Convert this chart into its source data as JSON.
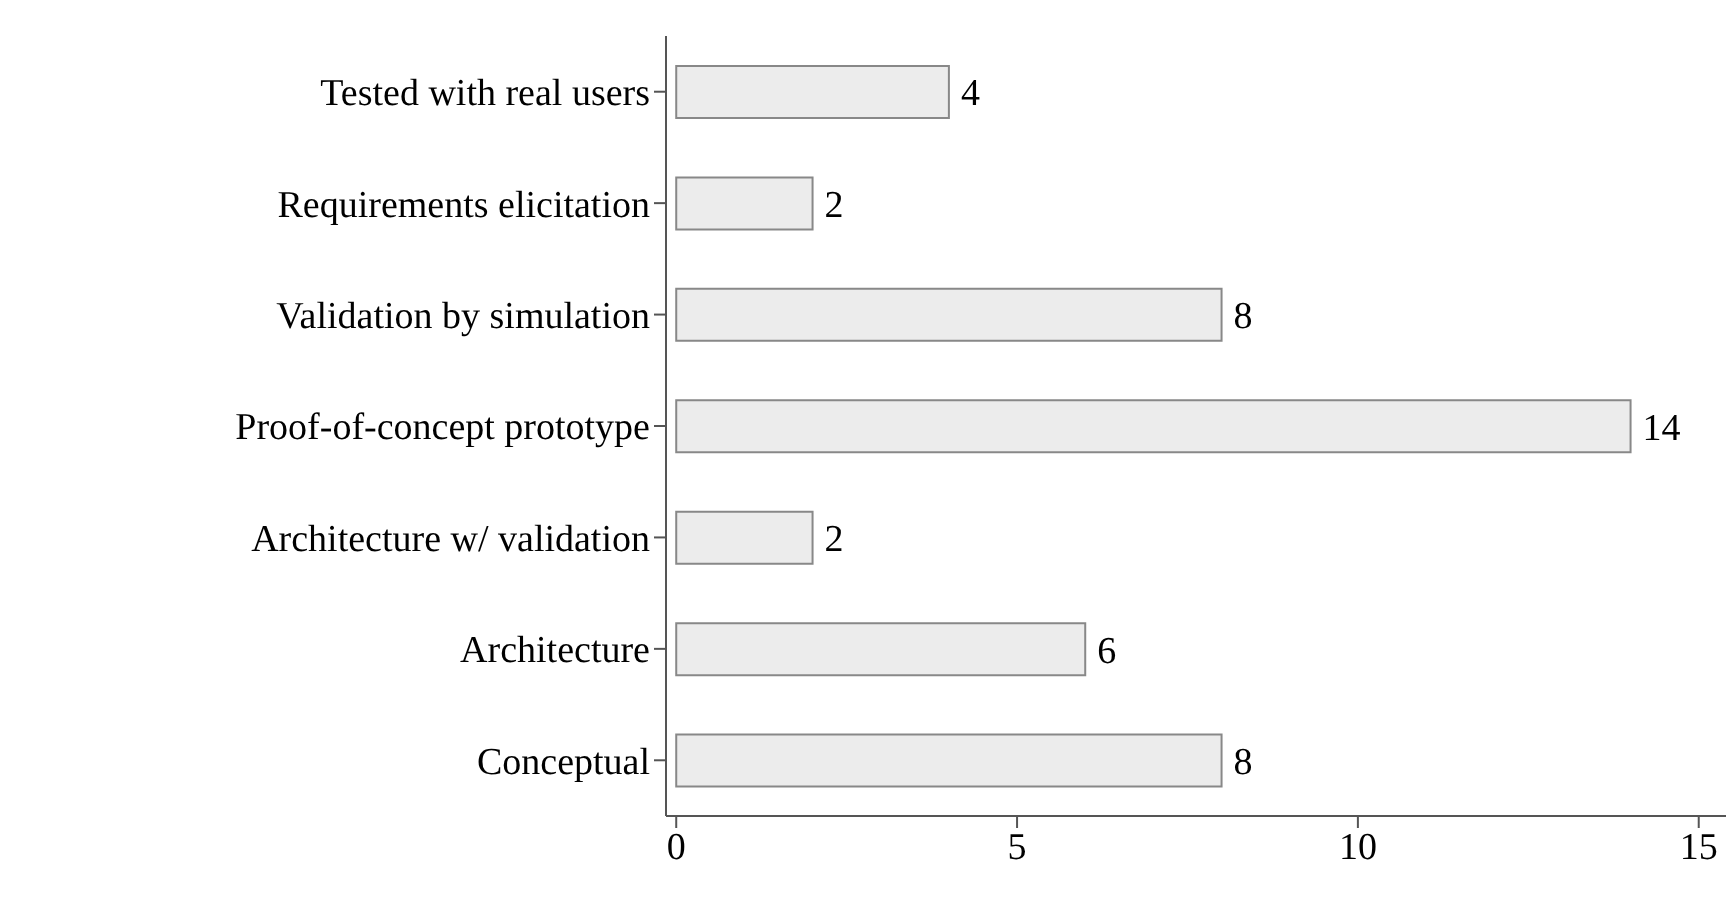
{
  "chart_data": {
    "type": "bar",
    "orientation": "horizontal",
    "categories": [
      "Tested with real users",
      "Requirements elicitation",
      "Validation by simulation",
      "Proof-of-concept prototype",
      "Architecture w/ validation",
      "Architecture",
      "Conceptual"
    ],
    "values": [
      4,
      2,
      8,
      14,
      2,
      6,
      8
    ],
    "color": "#ececec",
    "xlim": [
      -0.15,
      15.4
    ],
    "xticks": [
      0,
      5,
      10,
      15
    ],
    "data_labels": true,
    "grid": false,
    "legend": false
  }
}
